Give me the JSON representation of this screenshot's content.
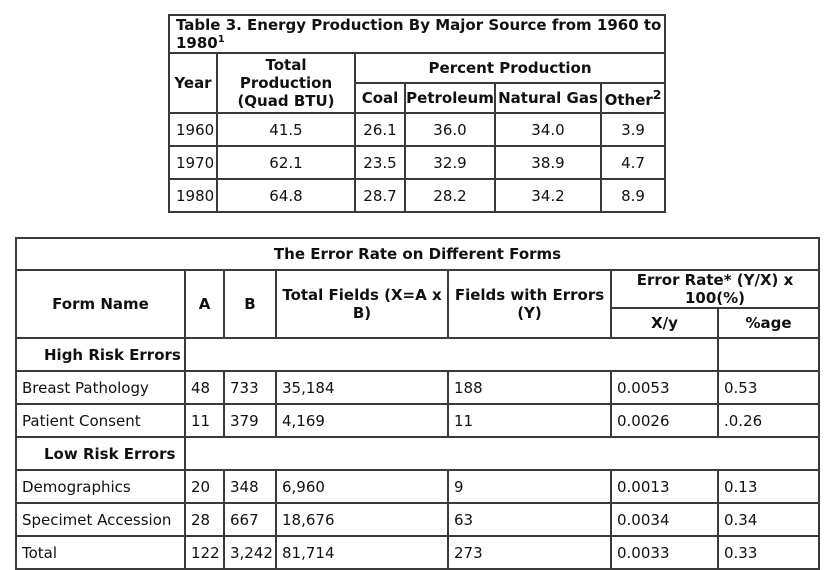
{
  "table3": {
    "title": "Table 3. Energy Production By Major Source from 1960 to 1980",
    "title_footnote": "1",
    "col_year": "Year",
    "col_total_line1": "Total Production",
    "col_total_line2": "(Quad BTU)",
    "col_percent": "Percent Production",
    "col_coal": "Coal",
    "col_petroleum": "Petroleum",
    "col_natgas": "Natural Gas",
    "col_other": "Other",
    "col_other_footnote": "2",
    "rows": [
      {
        "year": "1960",
        "total": "41.5",
        "coal": "26.1",
        "petroleum": "36.0",
        "natgas": "34.0",
        "other": "3.9"
      },
      {
        "year": "1970",
        "total": "62.1",
        "coal": "23.5",
        "petroleum": "32.9",
        "natgas": "38.9",
        "other": "4.7"
      },
      {
        "year": "1980",
        "total": "64.8",
        "coal": "28.7",
        "petroleum": "28.2",
        "natgas": "34.2",
        "other": "8.9"
      }
    ]
  },
  "error_table": {
    "title": "The Error Rate on Different Forms",
    "col_form": "Form Name",
    "col_a": "A",
    "col_b": "B",
    "col_total": "Total Fields (X=A x B)",
    "col_errors": "Fields with Errors (Y)",
    "col_rate": "Error Rate* (Y/X) x 100(%)",
    "col_xy": "X/y",
    "col_age": "%age",
    "section_high": "High Risk Errors",
    "section_low": "Low Risk Errors",
    "high_rows": [
      {
        "form": "Breast Pathology",
        "a": "48",
        "b": "733",
        "total": "35,184",
        "errors": "188",
        "xy": "0.0053",
        "pct": "0.53"
      },
      {
        "form": "Patient Consent",
        "a": "11",
        "b": "379",
        "total": "4,169",
        "errors": "11",
        "xy": "0.0026",
        "pct": ".0.26"
      }
    ],
    "low_rows": [
      {
        "form": "Demographics",
        "a": "20",
        "b": "348",
        "total": "6,960",
        "errors": "9",
        "xy": "0.0013",
        "pct": "0.13"
      },
      {
        "form": "Specimet Accession",
        "a": "28",
        "b": "667",
        "total": "18,676",
        "errors": "63",
        "xy": "0.0034",
        "pct": "0.34"
      }
    ],
    "total_row": {
      "form": "Total",
      "a": "122",
      "b": "3,242",
      "total": "81,714",
      "errors": "273",
      "xy": "0.0033",
      "pct": "0.33"
    }
  }
}
